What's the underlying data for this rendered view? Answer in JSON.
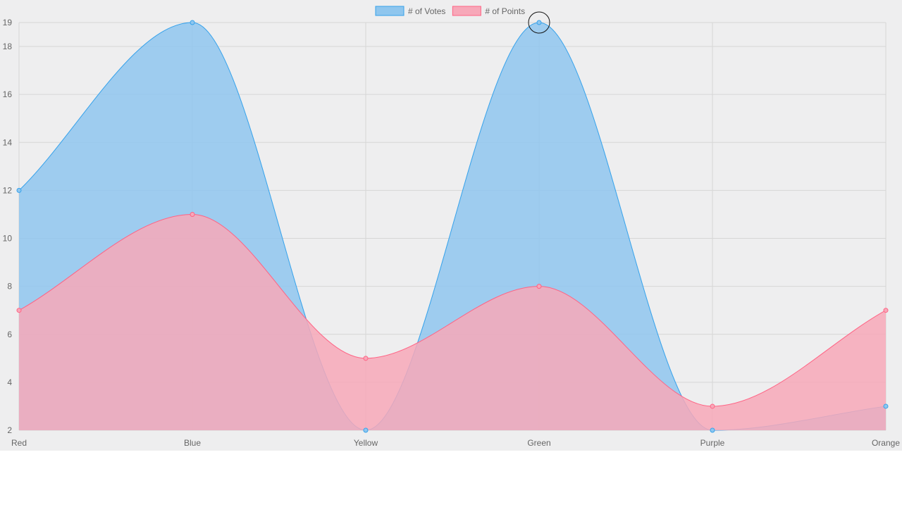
{
  "chart_data": {
    "type": "area",
    "categories": [
      "Red",
      "Blue",
      "Yellow",
      "Green",
      "Purple",
      "Orange"
    ],
    "series": [
      {
        "name": "# of Votes",
        "values": [
          12,
          19,
          2,
          19,
          2,
          3
        ],
        "color": "#36a2eb",
        "fill": "#8fc6ee"
      },
      {
        "name": "# of Points",
        "values": [
          7,
          11,
          5,
          8,
          3,
          7
        ],
        "color": "#ff6384",
        "fill": "#f7a8b9"
      }
    ],
    "y_ticks": [
      2,
      4,
      6,
      8,
      10,
      12,
      14,
      16,
      18,
      19
    ],
    "ylim": [
      2,
      19
    ],
    "grid": true,
    "legend_position": "top",
    "curve": "smooth"
  }
}
